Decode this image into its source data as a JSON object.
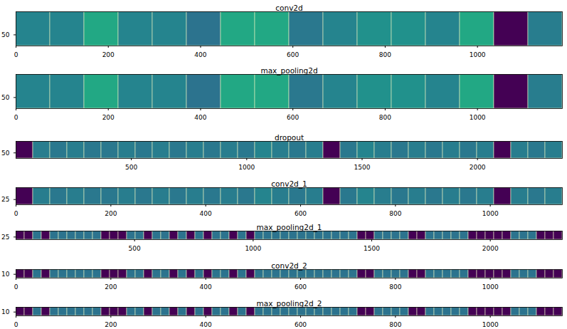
{
  "chart_data": [
    {
      "type": "heatmap",
      "title": "conv2d",
      "xlim": [
        0,
        1184
      ],
      "xticks": [
        0,
        200,
        400,
        600,
        800,
        1000
      ],
      "ylim": [
        74,
        0
      ],
      "yticks": [
        50
      ],
      "zlim": [
        0,
        1
      ],
      "tiles": [
        0.45,
        0.45,
        0.6,
        0.45,
        0.45,
        0.38,
        0.6,
        0.6,
        0.4,
        0.45,
        0.5,
        0.5,
        0.45,
        0.6,
        0,
        0.42
      ]
    },
    {
      "type": "heatmap",
      "title": "max_pooling2d",
      "xlim": [
        0,
        1184
      ],
      "xticks": [
        0,
        200,
        400,
        600,
        800,
        1000
      ],
      "ylim": [
        74,
        0
      ],
      "yticks": [
        50
      ],
      "zlim": [
        0,
        1
      ],
      "tiles": [
        0.45,
        0.45,
        0.6,
        0.45,
        0.45,
        0.38,
        0.6,
        0.6,
        0.4,
        0.45,
        0.5,
        0.5,
        0.45,
        0.6,
        0,
        0.42
      ]
    },
    {
      "type": "heatmap",
      "title": "dropout",
      "xlim": [
        0,
        2368
      ],
      "xticks": [
        500,
        1000,
        1500,
        2000
      ],
      "ylim": [
        74,
        0
      ],
      "yticks": [
        50
      ],
      "zlim": [
        0,
        1
      ],
      "tiles": [
        0,
        0.42,
        0.4,
        0.42,
        0.4,
        0.4,
        0.42,
        0.4,
        0.42,
        0.4,
        0.42,
        0.4,
        0.42,
        0.4,
        0.45,
        0.42,
        0.4,
        0.42,
        0,
        0.4,
        0.45,
        0.42,
        0.4,
        0.42,
        0.4,
        0.42,
        0.4,
        0.42,
        0,
        0.42,
        0.4,
        0.42
      ]
    },
    {
      "type": "heatmap",
      "title": "conv2d_1",
      "xlim": [
        0,
        1152
      ],
      "xticks": [
        0,
        200,
        400,
        600,
        800,
        1000
      ],
      "ylim": [
        36,
        0
      ],
      "yticks": [
        25
      ],
      "zlim": [
        0,
        1
      ],
      "tiles": [
        0,
        0.42,
        0.4,
        0.42,
        0.4,
        0.4,
        0.42,
        0.4,
        0.42,
        0.4,
        0.42,
        0.4,
        0.42,
        0.4,
        0.45,
        0.42,
        0.4,
        0.42,
        0,
        0.4,
        0.45,
        0.42,
        0.4,
        0.42,
        0.4,
        0.42,
        0.4,
        0.42,
        0,
        0.42,
        0.4,
        0.42
      ]
    },
    {
      "type": "heatmap",
      "title": "max_pooling2d_1",
      "xlim": [
        0,
        2304
      ],
      "xticks": [
        500,
        1000,
        1500,
        2000
      ],
      "ylim": [
        36,
        0
      ],
      "yticks": [
        25
      ],
      "zlim": [
        0,
        1
      ],
      "tiles": [
        0,
        0,
        0.38,
        0,
        0.38,
        0.38,
        0.38,
        0.38,
        0.38,
        0.38,
        0,
        0,
        0,
        0.38,
        0.38,
        0,
        0.38,
        0.38,
        0,
        0.38,
        0,
        0.38,
        0,
        0.38,
        0.38,
        0,
        0.38,
        0,
        0.38,
        0.38,
        0.38,
        0.38,
        0.38,
        0.38,
        0.38,
        0.38,
        0.38,
        0.38,
        0.38,
        0.38,
        0,
        0,
        0.38,
        0.38,
        0.38,
        0.38,
        0,
        0,
        0.38,
        0.38,
        0.38,
        0.38,
        0.38,
        0,
        0,
        0,
        0,
        0,
        0.38,
        0.38,
        0.38,
        0,
        0,
        0
      ]
    },
    {
      "type": "heatmap",
      "title": "conv2d_2",
      "xlim": [
        0,
        1152
      ],
      "xticks": [
        0,
        200,
        400,
        600,
        800,
        1000
      ],
      "ylim": [
        18,
        0
      ],
      "yticks": [
        10
      ],
      "zlim": [
        0,
        1
      ],
      "tiles": [
        0,
        0,
        0.38,
        0,
        0.38,
        0.38,
        0.38,
        0.38,
        0.38,
        0.38,
        0,
        0,
        0,
        0.38,
        0.38,
        0,
        0.38,
        0.38,
        0,
        0.38,
        0,
        0.38,
        0,
        0.38,
        0.38,
        0,
        0.38,
        0,
        0.38,
        0.38,
        0.38,
        0.38,
        0.38,
        0.38,
        0.38,
        0.38,
        0.38,
        0.38,
        0.38,
        0.38,
        0,
        0,
        0.38,
        0.38,
        0.38,
        0.38,
        0,
        0,
        0.38,
        0.38,
        0.38,
        0.38,
        0.38,
        0,
        0,
        0,
        0,
        0,
        0.38,
        0.38,
        0.38,
        0,
        0,
        0
      ]
    },
    {
      "type": "heatmap",
      "title": "max_pooling2d_2",
      "xlim": [
        0,
        1152
      ],
      "xticks": [
        0,
        200,
        400,
        600,
        800,
        1000
      ],
      "ylim": [
        18,
        0
      ],
      "yticks": [
        10
      ],
      "zlim": [
        0,
        1
      ],
      "tiles": [
        0,
        0,
        0.38,
        0,
        0.38,
        0.38,
        0.38,
        0.38,
        0.38,
        0.38,
        0,
        0,
        0,
        0.38,
        0.38,
        0,
        0.38,
        0.38,
        0,
        0.38,
        0,
        0.38,
        0,
        0.38,
        0.38,
        0,
        0.38,
        0,
        0.38,
        0.38,
        0.38,
        0.38,
        0.38,
        0.38,
        0.38,
        0.38,
        0.38,
        0.38,
        0.38,
        0.38,
        0,
        0,
        0.38,
        0.38,
        0.38,
        0.38,
        0,
        0,
        0.38,
        0.38,
        0.38,
        0.38,
        0.38,
        0,
        0,
        0,
        0,
        0,
        0.38,
        0.38,
        0.38,
        0,
        0,
        0
      ]
    }
  ]
}
